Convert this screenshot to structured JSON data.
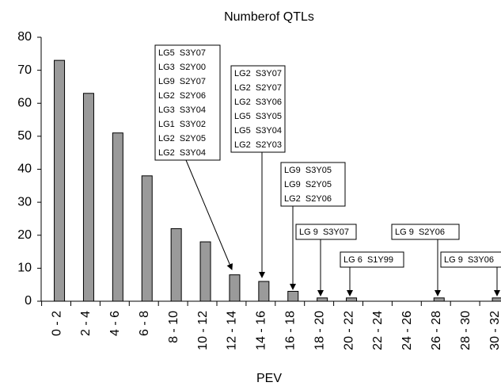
{
  "chart_data": {
    "type": "bar",
    "title": "Numberof QTLs",
    "x_label": "PEV",
    "categories": [
      "0 - 2",
      "2 - 4",
      "4 - 6",
      "6 - 8",
      "8 - 10",
      "10 - 12",
      "12 - 14",
      "14 - 16",
      "16 - 18",
      "18 - 20",
      "20 - 22",
      "22 - 24",
      "24 - 26",
      "26 - 28",
      "28 - 30",
      "30 - 32"
    ],
    "values": [
      73,
      63,
      51,
      38,
      22,
      18,
      8,
      6,
      3,
      1,
      1,
      0,
      0,
      1,
      0,
      1
    ],
    "color": "#9a9a9a",
    "ylim": [
      0,
      80
    ],
    "yticks": [
      0,
      10,
      20,
      30,
      40,
      50,
      60,
      70,
      80
    ],
    "grid": false,
    "annotations": [
      {
        "lines": [
          "LG5  S3Y07",
          "LG3  S2Y00",
          "LG9  S2Y07",
          "LG2  S2Y06",
          "LG3  S3Y04",
          "LG1  S3Y02",
          "LG2  S2Y05",
          "LG2  S3Y04"
        ]
      },
      {
        "lines": [
          "LG2  S3Y07",
          "LG2  S2Y07",
          "LG2  S3Y06",
          "LG5  S3Y05",
          "LG5  S3Y04",
          "LG2  S2Y03"
        ]
      },
      {
        "lines": [
          "LG9  S3Y05",
          "LG9  S2Y05",
          "LG2  S2Y06"
        ]
      },
      {
        "lines": [
          "LG 9  S3Y07"
        ]
      },
      {
        "lines": [
          "LG 6  S1Y99"
        ]
      },
      {
        "lines": [
          "LG 9  S2Y06"
        ]
      },
      {
        "lines": [
          "LG 9  S3Y06"
        ]
      }
    ]
  }
}
